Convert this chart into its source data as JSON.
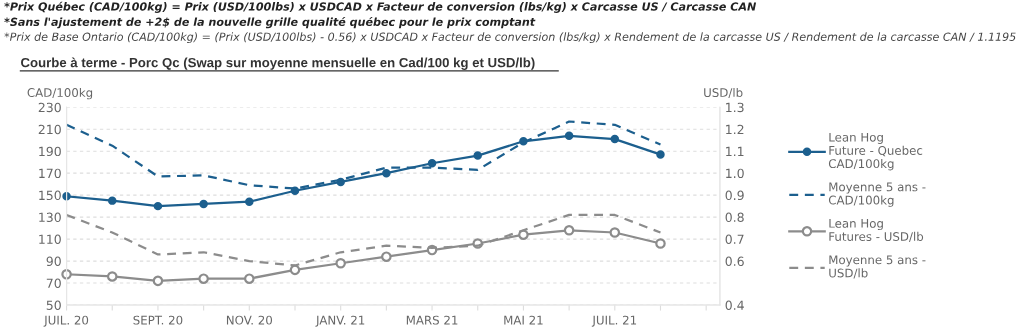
{
  "chart_data": {
    "type": "line",
    "title": "Courbe à terme - Porc Qc (Swap sur moyenne mensuelle en Cad/100 kg et USD/lb)",
    "annotations": [
      "*Prix Québec (CAD/100kg) = Prix (USD/100lbs) x USDCAD x Facteur de conversion (lbs/kg) x Carcasse US / Carcasse CAN",
      "*Sans l'ajustement de +2$ de la nouvelle grille qualité québec pour le prix comptant",
      "*Prix de Base Ontario (CAD/100kg) = (Prix (USD/100lbs) - 0.56) x USDCAD x Facteur de conversion (lbs/kg) x Rendement de la carcasse US / Rendement de la carcasse CAN / 1.1195"
    ],
    "ylabel": "CAD/100kg",
    "y2label": "USD/lb",
    "categories": [
      "JUIL. 20",
      null,
      "SEPT. 20",
      null,
      "NOV. 20",
      null,
      "JANV. 21",
      null,
      "MARS 21",
      null,
      "MAI 21",
      null,
      "JUIL. 21",
      null,
      null
    ],
    "ylim": [
      50,
      230
    ],
    "yticks": [
      50,
      70,
      90,
      110,
      130,
      150,
      170,
      190,
      210,
      230
    ],
    "y2lim": [
      0.4,
      1.3
    ],
    "y2ticks": [
      0.4,
      0.6,
      0.7,
      0.8,
      0.9,
      {
        "value": 1.0,
        "label": "1.0"
      },
      1.1,
      1.2,
      1.3
    ],
    "grid": "y",
    "legend": "right",
    "series": [
      {
        "name": "Lean Hog\nFuture - Quebec\nCAD/100kg",
        "color": "#1c5f8e",
        "marker": "circle",
        "line_style": "solid",
        "values": [
          149,
          145,
          140,
          142,
          144,
          154,
          162,
          170,
          179,
          186,
          199,
          204,
          201,
          187,
          null
        ]
      },
      {
        "name": "Moyenne 5 ans -\nCAD/100kg",
        "color": "#1c5f8e",
        "marker": "none",
        "line_style": "dashed",
        "values": [
          214,
          195,
          167,
          168,
          159,
          156,
          164,
          175,
          175,
          173,
          198,
          217,
          214,
          196,
          null
        ]
      },
      {
        "name": "Lean Hog\nFutures - USD/lb",
        "color": "#8c8c8c",
        "marker": "circle",
        "line_style": "solid",
        "axis": "y2",
        "values": [
          0.54,
          0.53,
          0.51,
          0.52,
          0.52,
          0.56,
          0.59,
          0.62,
          0.65,
          0.68,
          0.72,
          0.74,
          0.73,
          0.68,
          null
        ]
      },
      {
        "name": "Moyenne 5 ans -\nUSD/lb",
        "color": "#8c8c8c",
        "marker": "none",
        "line_style": "dashed",
        "axis": "y2",
        "values": [
          0.81,
          0.73,
          0.63,
          0.64,
          0.6,
          0.58,
          0.64,
          0.67,
          0.66,
          0.67,
          0.74,
          0.81,
          0.81,
          0.73,
          null
        ]
      }
    ]
  }
}
